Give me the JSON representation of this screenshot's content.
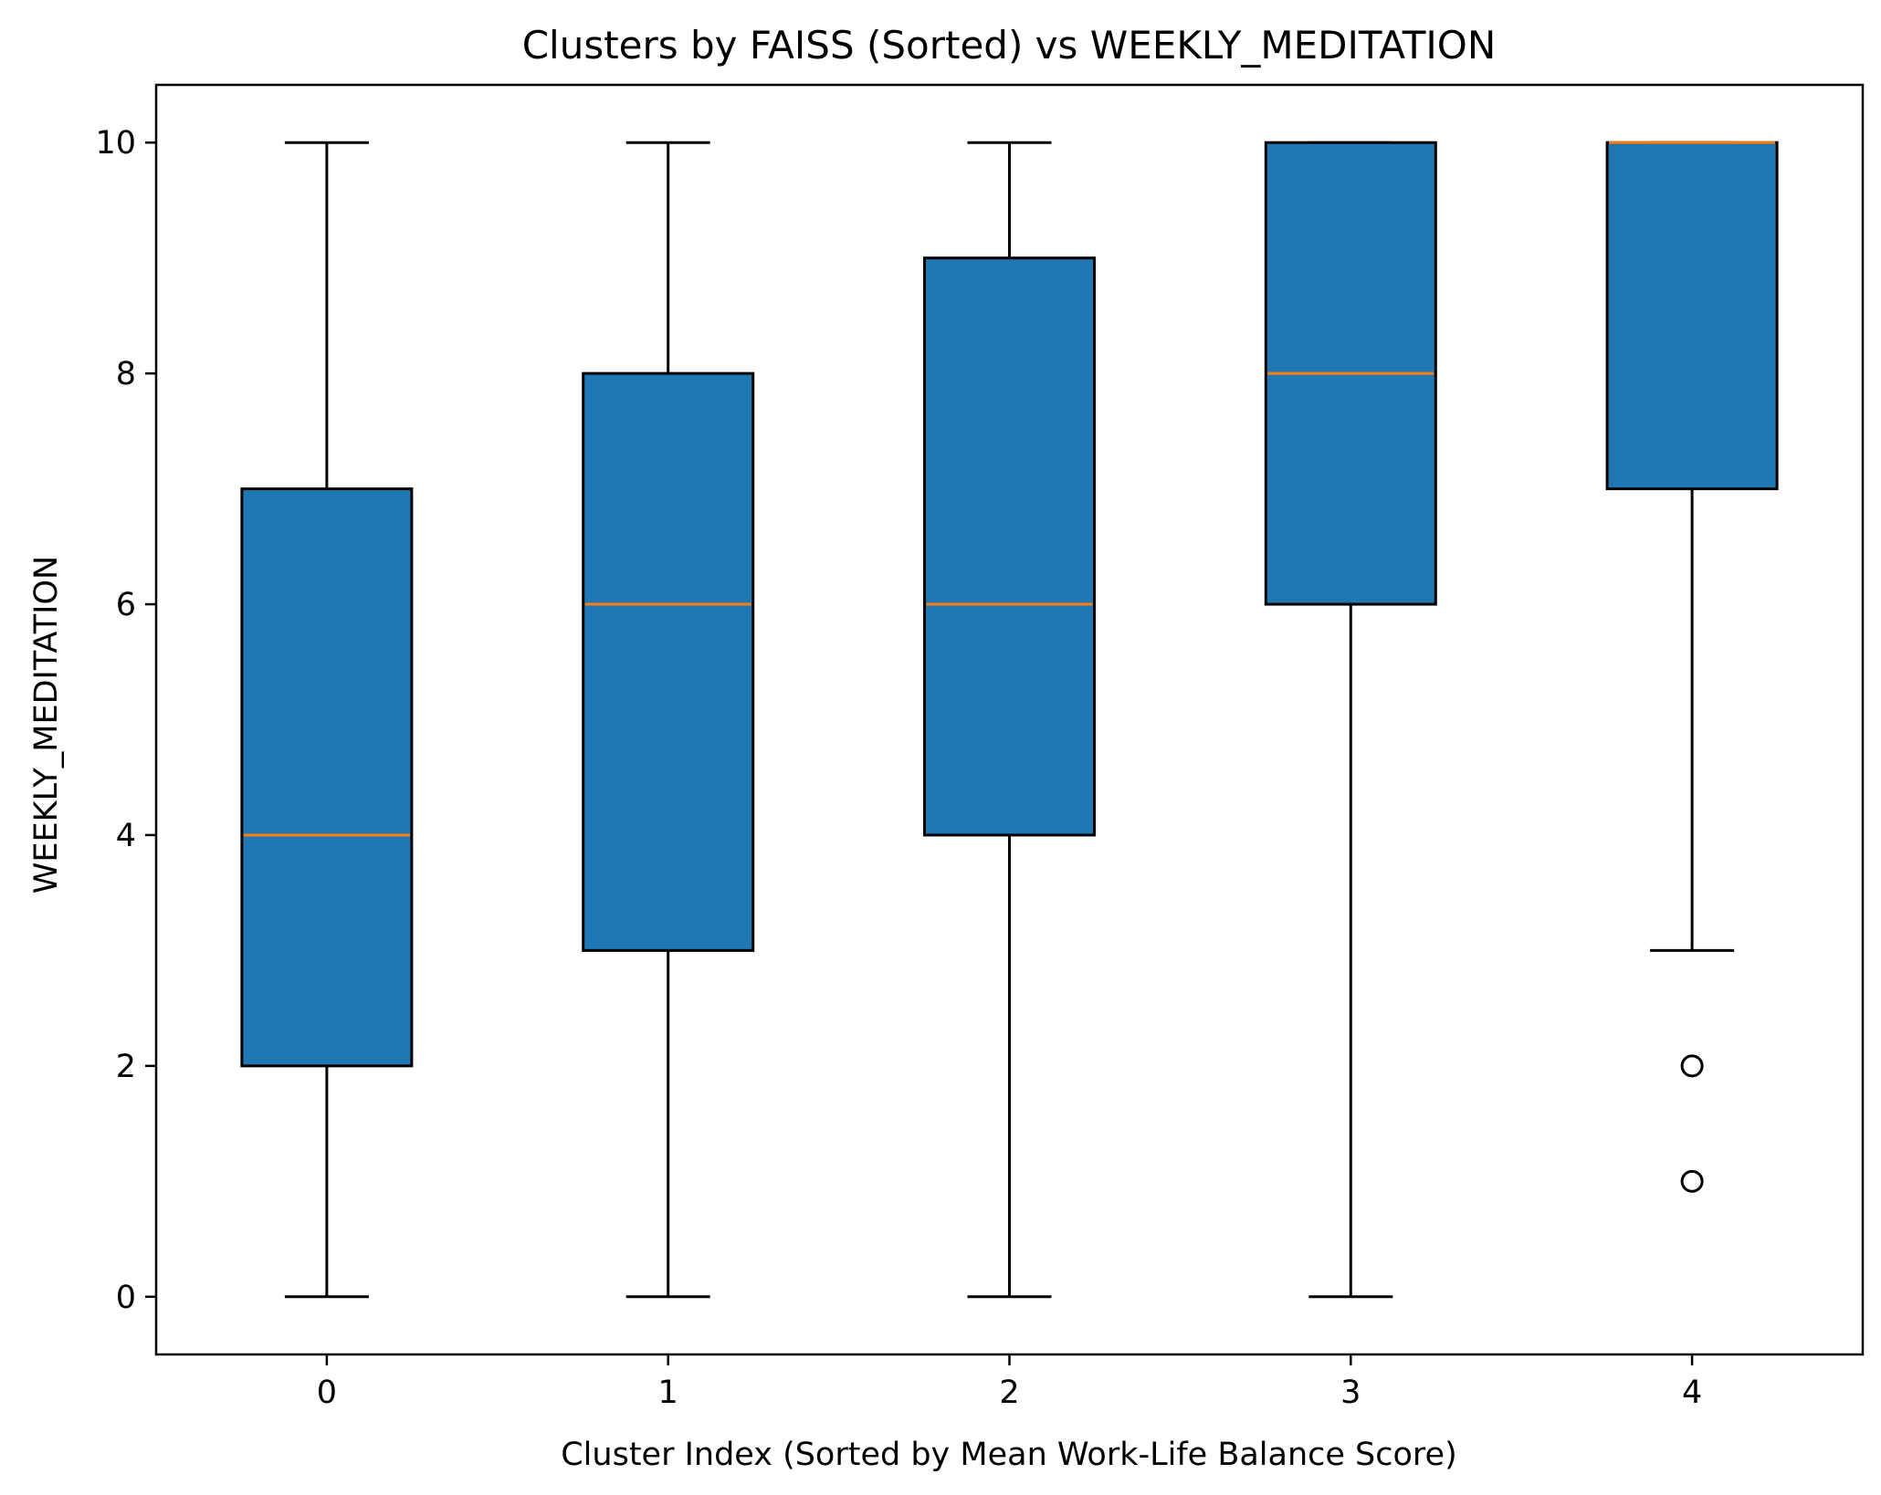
{
  "chart_data": {
    "type": "box",
    "title": "Clusters by FAISS (Sorted) vs WEEKLY_MEDITATION",
    "xlabel": "Cluster Index (Sorted by Mean Work-Life Balance Score)",
    "ylabel": "WEEKLY_MEDITATION",
    "categories": [
      "0",
      "1",
      "2",
      "3",
      "4"
    ],
    "ylim": [
      -0.5,
      10.5
    ],
    "yticks": [
      0,
      2,
      4,
      6,
      8,
      10
    ],
    "grid": false,
    "boxes": [
      {
        "category": "0",
        "whisker_low": 0,
        "q1": 2,
        "median": 4,
        "q3": 7,
        "whisker_high": 10,
        "outliers": []
      },
      {
        "category": "1",
        "whisker_low": 0,
        "q1": 3,
        "median": 6,
        "q3": 8,
        "whisker_high": 10,
        "outliers": []
      },
      {
        "category": "2",
        "whisker_low": 0,
        "q1": 4,
        "median": 6,
        "q3": 9,
        "whisker_high": 10,
        "outliers": []
      },
      {
        "category": "3",
        "whisker_low": 0,
        "q1": 6,
        "median": 8,
        "q3": 10,
        "whisker_high": 10,
        "outliers": []
      },
      {
        "category": "4",
        "whisker_low": 3,
        "q1": 7,
        "median": 10,
        "q3": 10,
        "whisker_high": 10,
        "outliers": [
          2,
          1
        ]
      }
    ],
    "colors": {
      "box_fill": "#1f77b4",
      "median": "#ff7f0e",
      "edge": "#000000"
    }
  }
}
